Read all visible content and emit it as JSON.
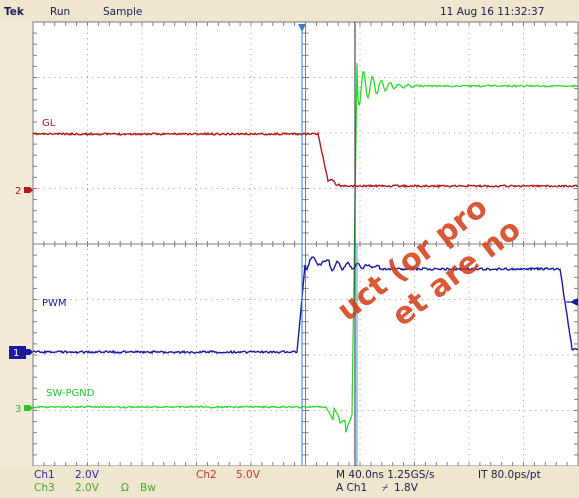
{
  "header": {
    "brand": "Tek",
    "run_state": "Run",
    "acq_mode": "Sample",
    "datetime": "11 Aug 16 11:32:37"
  },
  "channels": {
    "ch1": {
      "label": "PWM",
      "marker": "1",
      "color": "#1a1aa0"
    },
    "ch2": {
      "label": "GL",
      "marker": "2",
      "color": "#b01818"
    },
    "ch3": {
      "label": "SW-PGND",
      "marker": "3",
      "color": "#2fd82f"
    }
  },
  "footer": {
    "ch1_name": "Ch1",
    "ch1_scale": "2.0V",
    "ch2_name": "Ch2",
    "ch2_scale": "5.0V",
    "ch3_name": "Ch3",
    "ch3_scale": "2.0V",
    "ch3_coupling": "Ω",
    "ch3_bw": "Bw",
    "timebase": "M 40.0ns 1.25GS/s",
    "record": "IT 80.0ps/pt",
    "trigger_src": "A  Ch1",
    "trigger_slope": "⌿",
    "trigger_level": "1.8V"
  },
  "watermark": {
    "line1": "uct (or pro",
    "line2": "et are no"
  }
}
